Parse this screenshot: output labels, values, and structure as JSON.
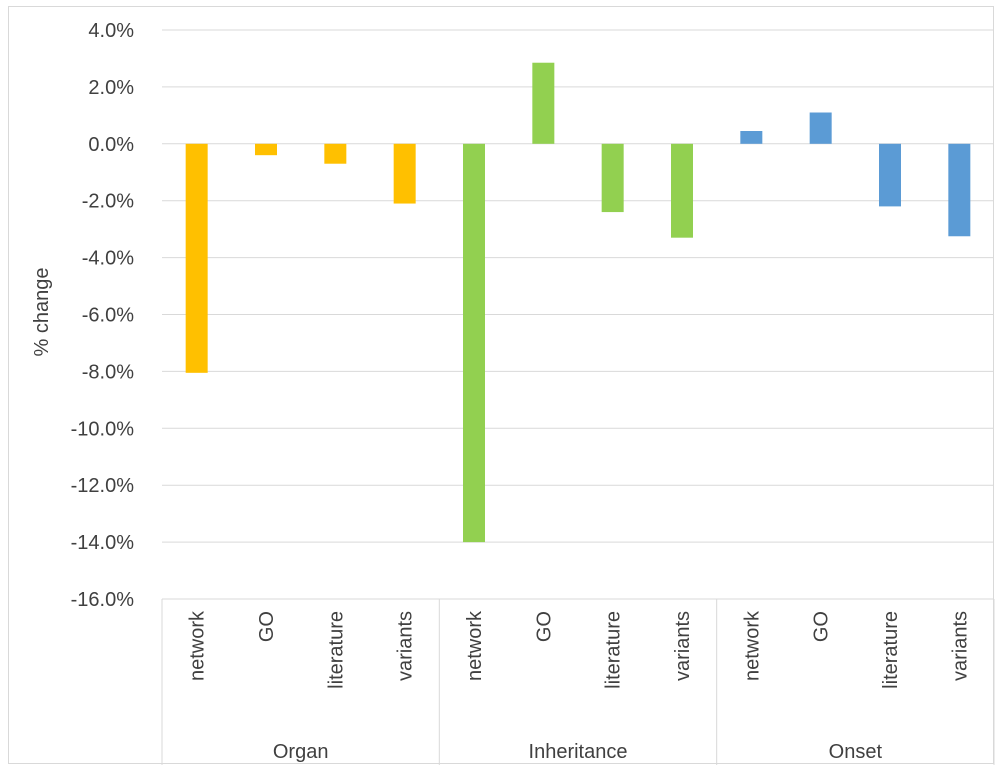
{
  "chart_data": {
    "type": "bar",
    "title": "",
    "ylabel": "% change",
    "xlabel": "",
    "ylim": [
      -16.0,
      4.0
    ],
    "yticks": [
      4.0,
      2.0,
      0.0,
      -2.0,
      -4.0,
      -6.0,
      -8.0,
      -10.0,
      -12.0,
      -14.0,
      -16.0
    ],
    "ytick_labels": [
      "4.0%",
      "2.0%",
      "0.0%",
      "-2.0%",
      "-4.0%",
      "-6.0%",
      "-8.0%",
      "-10.0%",
      "-12.0%",
      "-14.0%",
      "-16.0%"
    ],
    "grid": true,
    "legend": "none",
    "groups": [
      {
        "name": "Organ",
        "color": "#FFC000",
        "categories": [
          "network",
          "GO",
          "literature",
          "variants"
        ],
        "values": [
          -8.05,
          -0.4,
          -0.7,
          -2.1
        ]
      },
      {
        "name": "Inheritance",
        "color": "#92D050",
        "categories": [
          "network",
          "GO",
          "literature",
          "variants"
        ],
        "values": [
          -14.0,
          2.85,
          -2.4,
          -3.3
        ]
      },
      {
        "name": "Onset",
        "color": "#5B9BD5",
        "categories": [
          "network",
          "GO",
          "literature",
          "variants"
        ],
        "values": [
          0.45,
          1.1,
          -2.2,
          -3.25
        ]
      }
    ]
  }
}
